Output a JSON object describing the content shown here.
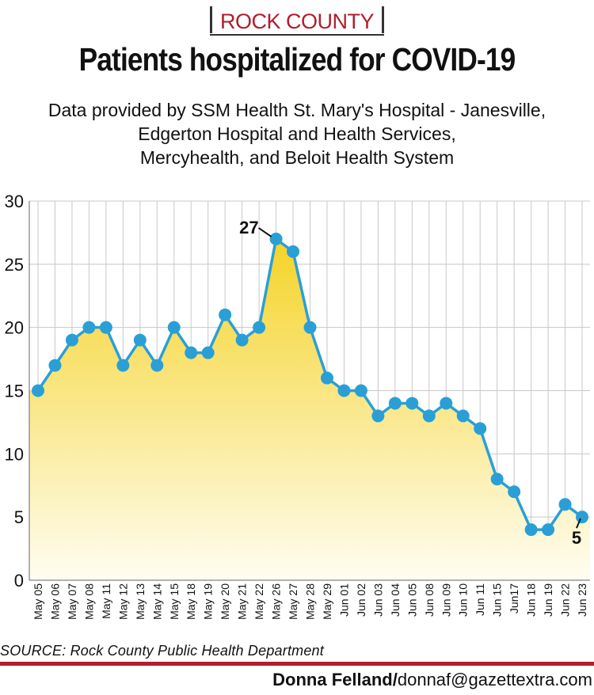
{
  "header": {
    "kicker": "ROCK COUNTY",
    "title": "Patients hospitalized for COVID-19",
    "subtitle_lines": [
      "Data provided by SSM Health St. Mary's Hospital - Janesville,",
      "Edgerton Hospital and Health Services,",
      "Mercyhealth, and Beloit Health System"
    ]
  },
  "chart_data": {
    "type": "area",
    "categories": [
      "May 05",
      "May 06",
      "May 07",
      "May 08",
      "May 11",
      "May 12",
      "May 13",
      "May 14",
      "May 15",
      "May 18",
      "May 19",
      "May 20",
      "May 21",
      "May 22",
      "May 26",
      "May 27",
      "May 28",
      "May 29",
      "Jun 01",
      "Jun 02",
      "Jun 03",
      "Jun 04",
      "Jun 05",
      "Jun 08",
      "Jun 09",
      "Jun 10",
      "Jun 11",
      "Jun 15",
      "Jun17",
      "Jun 18",
      "Jun 19",
      "Jun 22",
      "Jun 23"
    ],
    "values": [
      15,
      17,
      19,
      20,
      20,
      17,
      19,
      17,
      20,
      18,
      18,
      21,
      19,
      20,
      27,
      26,
      20,
      16,
      15,
      15,
      13,
      14,
      14,
      13,
      14,
      13,
      12,
      8,
      7,
      4,
      4,
      6,
      5
    ],
    "ylim": [
      0,
      30
    ],
    "yticks": [
      0,
      5,
      10,
      15,
      20,
      25,
      30
    ],
    "annotations": [
      {
        "label": "27",
        "category": "May 26",
        "value": 27
      },
      {
        "label": "5",
        "category": "Jun 23",
        "value": 5
      }
    ],
    "grid": true,
    "colors": {
      "line": "#2a9fd6",
      "fill_top": "#f5d328",
      "fill_bottom": "#fffdf2",
      "grid": "#c8c8c8"
    }
  },
  "footer": {
    "source": "SOURCE: Rock County Public Health Department",
    "credit_name": "Donna Felland/",
    "credit_email": "donnaf@gazettextra.com",
    "accent": "#b01e2d"
  }
}
